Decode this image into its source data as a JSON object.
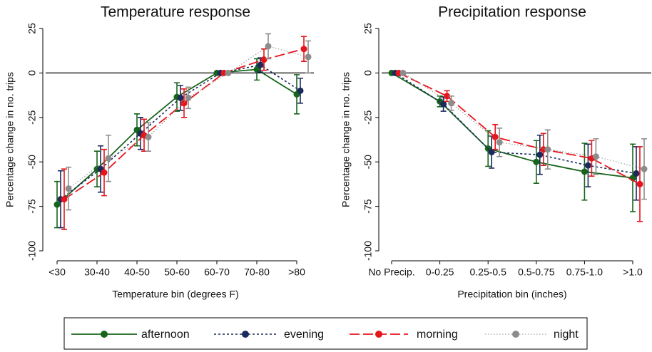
{
  "chart_data": [
    {
      "type": "line",
      "title": "Temperature response",
      "x_label": "Temperature bin (degrees F)",
      "y_label": "Percentage change in no. trips",
      "categories": [
        "<30",
        "30-40",
        "40-50",
        "50-60",
        "60-70",
        "70-80",
        ">80"
      ],
      "ylim": [
        -104,
        29
      ],
      "yticks": [
        25,
        0,
        -25,
        -50,
        -75,
        -100
      ],
      "series": [
        {
          "name": "afternoon",
          "color": "#17651a",
          "values": [
            -74,
            -54,
            -32,
            -13.5,
            0,
            2,
            -12
          ],
          "errors": [
            13,
            10,
            9,
            8,
            0,
            6,
            11
          ]
        },
        {
          "name": "evening",
          "color": "#1b2a5c",
          "values": [
            -71,
            -54,
            -34,
            -14,
            0,
            4.5,
            -10
          ],
          "errors": [
            16,
            13,
            9,
            7,
            0,
            4,
            7
          ]
        },
        {
          "name": "morning",
          "color": "#e8141b",
          "values": [
            -71,
            -56,
            -35,
            -17,
            0,
            7.5,
            13.5
          ],
          "errors": [
            17,
            13,
            9,
            8,
            0,
            6,
            7
          ]
        },
        {
          "name": "night",
          "color": "#8c8c8c",
          "values": [
            -65,
            -48,
            -36,
            -14,
            0,
            15,
            9
          ],
          "errors": [
            12,
            13,
            8,
            6,
            0,
            7,
            9
          ]
        }
      ]
    },
    {
      "type": "line",
      "title": "Precipitation response",
      "x_label": "Precipitation bin (inches)",
      "y_label": "Percentage change in no. trips",
      "categories": [
        "No Precip.",
        "0-0.25",
        "0.25-0.5",
        "0.5-0.75",
        "0.75-1.0",
        ">1.0"
      ],
      "ylim": [
        -104,
        29
      ],
      "yticks": [
        25,
        0,
        -25,
        -50,
        -75,
        -100
      ],
      "series": [
        {
          "name": "afternoon",
          "color": "#17651a",
          "values": [
            0,
            -16,
            -42.5,
            -50,
            -55.5,
            -59
          ],
          "errors": [
            0,
            3,
            10,
            12,
            16,
            19
          ]
        },
        {
          "name": "evening",
          "color": "#1b2a5c",
          "values": [
            0,
            -17.5,
            -44.5,
            -46,
            -52,
            -56.5
          ],
          "errors": [
            0,
            4,
            9,
            11,
            12,
            15
          ]
        },
        {
          "name": "morning",
          "color": "#e8141b",
          "values": [
            0,
            -13,
            -36,
            -43,
            -48,
            -62.5
          ],
          "errors": [
            0,
            3,
            7,
            9,
            10,
            21
          ]
        },
        {
          "name": "night",
          "color": "#8c8c8c",
          "values": [
            0,
            -17,
            -39,
            -43,
            -47,
            -54
          ],
          "errors": [
            0,
            4,
            8,
            11,
            10,
            17
          ]
        }
      ]
    }
  ]
}
